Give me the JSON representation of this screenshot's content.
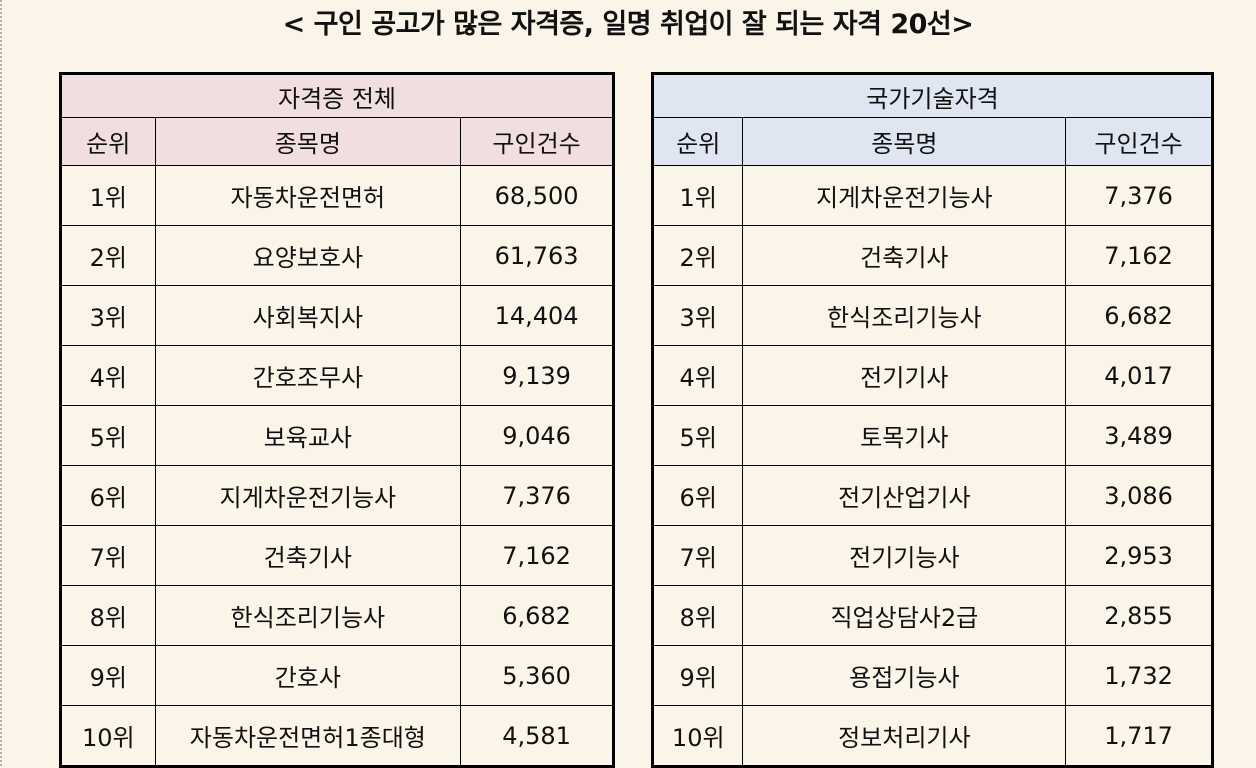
{
  "title": "< 구인 공고가 많은 자격증, 일명 취업이 잘 되는 자격 20선>",
  "left_table": {
    "heading": "자격증 전체",
    "columns": [
      "순위",
      "종목명",
      "구인건수"
    ],
    "rows": [
      {
        "rank": "1위",
        "name": "자동차운전면허",
        "count": "68,500",
        "bold": false
      },
      {
        "rank": "2위",
        "name": "요양보호사",
        "count": "61,763",
        "bold": false
      },
      {
        "rank": "3위",
        "name": "사회복지사",
        "count": "14,404",
        "bold": false
      },
      {
        "rank": "4위",
        "name": "간호조무사",
        "count": "9,139",
        "bold": false
      },
      {
        "rank": "5위",
        "name": "보육교사",
        "count": "9,046",
        "bold": false
      },
      {
        "rank": "6위",
        "name": "지게차운전기능사",
        "count": "7,376",
        "bold": true
      },
      {
        "rank": "7위",
        "name": "건축기사",
        "count": "7,162",
        "bold": true
      },
      {
        "rank": "8위",
        "name": "한식조리기능사",
        "count": "6,682",
        "bold": true
      },
      {
        "rank": "9위",
        "name": "간호사",
        "count": "5,360",
        "bold": false
      },
      {
        "rank": "10위",
        "name": "자동차운전면허1종대형",
        "count": "4,581",
        "bold": false
      }
    ]
  },
  "right_table": {
    "heading": "국가기술자격",
    "columns": [
      "순위",
      "종목명",
      "구인건수"
    ],
    "rows": [
      {
        "rank": "1위",
        "name": "지게차운전기능사",
        "count": "7,376",
        "bold": false
      },
      {
        "rank": "2위",
        "name": "건축기사",
        "count": "7,162",
        "bold": false
      },
      {
        "rank": "3위",
        "name": "한식조리기능사",
        "count": "6,682",
        "bold": false
      },
      {
        "rank": "4위",
        "name": "전기기사",
        "count": "4,017",
        "bold": false
      },
      {
        "rank": "5위",
        "name": "토목기사",
        "count": "3,489",
        "bold": false
      },
      {
        "rank": "6위",
        "name": "전기산업기사",
        "count": "3,086",
        "bold": false
      },
      {
        "rank": "7위",
        "name": "전기기능사",
        "count": "2,953",
        "bold": false
      },
      {
        "rank": "8위",
        "name": "직업상담사2급",
        "count": "2,855",
        "bold": false
      },
      {
        "rank": "9위",
        "name": "용접기능사",
        "count": "1,732",
        "bold": false
      },
      {
        "rank": "10위",
        "name": "정보처리기사",
        "count": "1,717",
        "bold": false
      }
    ]
  }
}
